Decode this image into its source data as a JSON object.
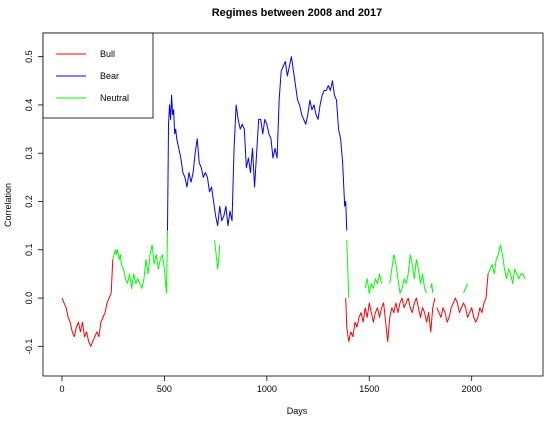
{
  "chart_data": {
    "type": "line",
    "title": "Regimes between 2008 and 2017",
    "xlabel": "Days",
    "ylabel": "Correlation",
    "xlim": [
      0,
      2270
    ],
    "ylim": [
      -0.12,
      0.52
    ],
    "x_ticks": [
      0,
      500,
      1000,
      1500,
      2000
    ],
    "x_tick_labels": [
      "0",
      "500",
      "1000",
      "1500",
      "2000"
    ],
    "y_ticks": [
      -0.1,
      0.0,
      0.1,
      0.2,
      0.3,
      0.4,
      0.5
    ],
    "y_tick_labels": [
      "-0.1",
      "0.0",
      "0.1",
      "0.2",
      "0.3",
      "0.4",
      "0.5"
    ],
    "grid": false,
    "legend": {
      "placement": "top-left",
      "entries": [
        {
          "name": "Bull",
          "color": "#ff0000"
        },
        {
          "name": "Bear",
          "color": "#0000ff"
        },
        {
          "name": "Neutral",
          "color": "#00ff00"
        }
      ]
    },
    "series": [
      {
        "name": "Bull",
        "color": "#ff0000",
        "segments": [
          {
            "x": [
              0,
              10,
              20,
              30,
              40,
              50,
              60,
              70,
              80,
              90,
              100,
              110,
              120,
              130,
              140,
              150,
              160,
              170,
              180,
              190,
              200,
              210,
              220,
              230,
              240,
              248
            ],
            "y": [
              0.0,
              -0.01,
              -0.02,
              -0.04,
              -0.05,
              -0.07,
              -0.08,
              -0.06,
              -0.05,
              -0.07,
              -0.05,
              -0.08,
              -0.07,
              -0.09,
              -0.1,
              -0.09,
              -0.08,
              -0.07,
              -0.08,
              -0.05,
              -0.04,
              -0.03,
              -0.01,
              0.0,
              0.01,
              0.08
            ]
          },
          {
            "x": [
              1385,
              1390,
              1400,
              1410,
              1420,
              1430,
              1440,
              1450,
              1460,
              1470,
              1480,
              1490,
              1500,
              1510,
              1520,
              1530,
              1540,
              1550,
              1560,
              1570,
              1580,
              1590,
              1600,
              1610,
              1620,
              1630,
              1640,
              1650,
              1660,
              1670,
              1680,
              1690,
              1700,
              1710,
              1720,
              1730,
              1740,
              1750,
              1760,
              1770,
              1780,
              1790,
              1800,
              1810,
              1820
            ],
            "y": [
              0.0,
              -0.06,
              -0.09,
              -0.07,
              -0.08,
              -0.05,
              -0.06,
              -0.04,
              -0.03,
              -0.05,
              -0.02,
              -0.04,
              -0.01,
              -0.03,
              -0.05,
              -0.03,
              -0.02,
              -0.04,
              -0.02,
              -0.01,
              -0.05,
              -0.09,
              -0.04,
              -0.02,
              -0.03,
              -0.01,
              -0.03,
              -0.01,
              0.0,
              -0.02,
              -0.01,
              0.0,
              -0.02,
              -0.03,
              -0.01,
              0.0,
              -0.02,
              -0.04,
              -0.02,
              -0.03,
              -0.05,
              -0.03,
              -0.07,
              -0.02,
              0.0
            ]
          },
          {
            "x": [
              1830,
              1840,
              1850,
              1860,
              1870,
              1880,
              1890,
              1900,
              1910,
              1920,
              1930,
              1940,
              1950,
              1960,
              1970,
              1980,
              1990,
              2000,
              2010,
              2020,
              2030,
              2040,
              2050,
              2060,
              2070,
              2080
            ],
            "y": [
              -0.02,
              -0.03,
              -0.04,
              -0.02,
              -0.03,
              -0.05,
              -0.04,
              -0.02,
              -0.01,
              0.0,
              -0.01,
              -0.03,
              -0.02,
              -0.01,
              -0.02,
              -0.04,
              -0.03,
              -0.02,
              -0.04,
              -0.05,
              -0.04,
              -0.02,
              -0.03,
              -0.01,
              0.0,
              0.05
            ]
          }
        ]
      },
      {
        "name": "Bear",
        "color": "#0000ff",
        "segments": [
          {
            "x": [
              515,
              520,
              525,
              530,
              535,
              540,
              545,
              550,
              555,
              560,
              570,
              580,
              590,
              600,
              610,
              620,
              630,
              640,
              650,
              660,
              670,
              680,
              690,
              700,
              710,
              720,
              730,
              740,
              750,
              760,
              770,
              780,
              790,
              800,
              810,
              820,
              830,
              840,
              850,
              860,
              870,
              880,
              890,
              900,
              910,
              920,
              930,
              940,
              950,
              960,
              970,
              980,
              990,
              1000,
              1010,
              1020,
              1030,
              1040,
              1050,
              1060,
              1070,
              1080,
              1090,
              1100,
              1110,
              1120,
              1130,
              1140,
              1150,
              1160,
              1170,
              1180,
              1190,
              1200,
              1210,
              1220,
              1230,
              1240,
              1250,
              1260,
              1270,
              1280,
              1290,
              1300,
              1310,
              1320,
              1330,
              1340,
              1350,
              1360,
              1370,
              1380
            ],
            "y": [
              0.14,
              0.36,
              0.4,
              0.37,
              0.42,
              0.38,
              0.39,
              0.34,
              0.35,
              0.33,
              0.31,
              0.29,
              0.26,
              0.25,
              0.23,
              0.26,
              0.24,
              0.26,
              0.3,
              0.33,
              0.28,
              0.27,
              0.25,
              0.26,
              0.25,
              0.22,
              0.23,
              0.2,
              0.17,
              0.15,
              0.19,
              0.16,
              0.17,
              0.19,
              0.15,
              0.18,
              0.16,
              0.31,
              0.4,
              0.37,
              0.35,
              0.36,
              0.35,
              0.27,
              0.29,
              0.26,
              0.31,
              0.23,
              0.3,
              0.37,
              0.37,
              0.34,
              0.37,
              0.36,
              0.34,
              0.33,
              0.29,
              0.31,
              0.29,
              0.41,
              0.47,
              0.48,
              0.49,
              0.46,
              0.48,
              0.5,
              0.47,
              0.44,
              0.41,
              0.4,
              0.38,
              0.37,
              0.36,
              0.38,
              0.41,
              0.39,
              0.4,
              0.38,
              0.37,
              0.4,
              0.42,
              0.43,
              0.43,
              0.44,
              0.43,
              0.45,
              0.42,
              0.41,
              0.35,
              0.33,
              0.28,
              0.19
            ]
          },
          {
            "x": [
              1380,
              1385,
              1390
            ],
            "y": [
              0.19,
              0.2,
              0.14
            ]
          }
        ]
      },
      {
        "name": "Neutral",
        "color": "#00ff00",
        "segments": [
          {
            "x": [
              248,
              255,
              260,
              265,
              270,
              275,
              280,
              285,
              290,
              300,
              310,
              320,
              330,
              340,
              350,
              360,
              370,
              380,
              390,
              400,
              410,
              420,
              430,
              440,
              450,
              460,
              470,
              480,
              490,
              500,
              510,
              515
            ],
            "y": [
              0.08,
              0.09,
              0.1,
              0.09,
              0.1,
              0.09,
              0.08,
              0.09,
              0.07,
              0.06,
              0.04,
              0.03,
              0.05,
              0.02,
              0.05,
              0.03,
              0.04,
              0.03,
              0.02,
              0.04,
              0.08,
              0.05,
              0.09,
              0.11,
              0.07,
              0.09,
              0.06,
              0.08,
              0.09,
              0.06,
              0.01,
              0.14
            ]
          },
          {
            "x": [
              745,
              750,
              755,
              760,
              765,
              770
            ],
            "y": [
              0.12,
              0.1,
              0.08,
              0.06,
              0.08,
              0.11
            ]
          },
          {
            "x": [
              1390,
              1395,
              1400
            ],
            "y": [
              0.12,
              0.06,
              0.0
            ]
          },
          {
            "x": [
              1480,
              1490,
              1500,
              1510,
              1520,
              1530,
              1540,
              1550,
              1560
            ],
            "y": [
              0.02,
              0.04,
              0.01,
              0.03,
              0.02,
              0.04,
              0.03,
              0.05,
              0.03
            ]
          },
          {
            "x": [
              1600,
              1610,
              1620,
              1630,
              1640,
              1650,
              1660,
              1670,
              1680,
              1690,
              1700,
              1710,
              1720,
              1730,
              1740,
              1750,
              1760,
              1770,
              1780
            ],
            "y": [
              0.03,
              0.06,
              0.09,
              0.07,
              0.04,
              0.01,
              0.02,
              0.04,
              0.03,
              0.05,
              0.09,
              0.07,
              0.04,
              0.08,
              0.06,
              0.03,
              0.05,
              0.02,
              0.01
            ]
          },
          {
            "x": [
              1800,
              1805,
              1810
            ],
            "y": [
              0.02,
              0.03,
              0.01
            ]
          },
          {
            "x": [
              1960,
              1970,
              1980
            ],
            "y": [
              0.01,
              0.02,
              0.03
            ]
          },
          {
            "x": [
              2080,
              2090,
              2100,
              2110,
              2120,
              2130,
              2140,
              2150,
              2160,
              2170,
              2180,
              2190,
              2200,
              2210,
              2220,
              2230,
              2240,
              2250,
              2260
            ],
            "y": [
              0.05,
              0.06,
              0.07,
              0.05,
              0.08,
              0.09,
              0.11,
              0.09,
              0.06,
              0.04,
              0.06,
              0.05,
              0.03,
              0.06,
              0.05,
              0.04,
              0.05,
              0.05,
              0.04
            ]
          }
        ]
      }
    ]
  }
}
